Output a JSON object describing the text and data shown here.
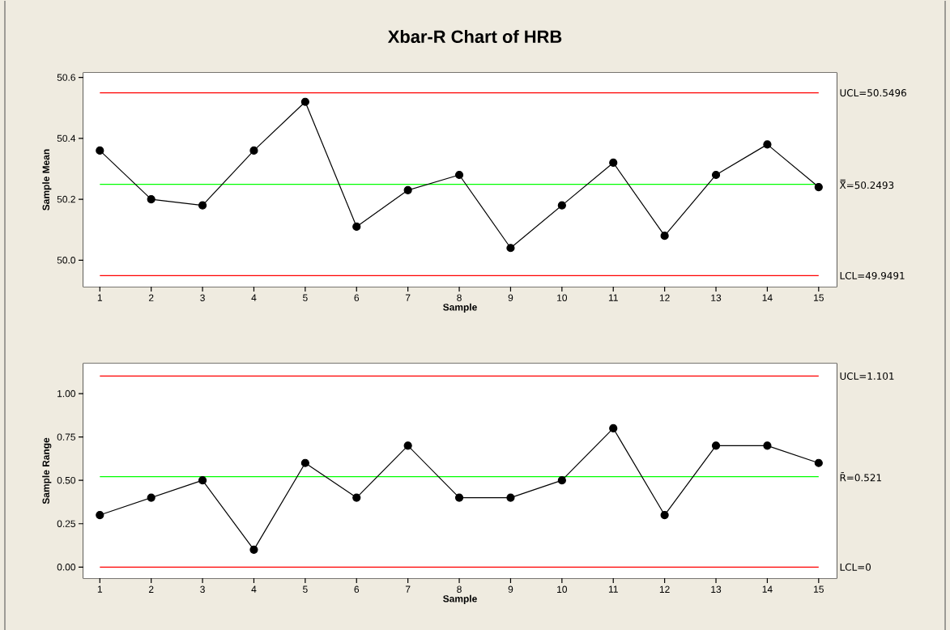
{
  "chart_data": [
    {
      "type": "line",
      "title": "Xbar-R Chart of HRB",
      "xlabel": "Sample",
      "ylabel": "Sample Mean",
      "color": "#000000",
      "marker": "circle",
      "x": [
        1,
        2,
        3,
        4,
        5,
        6,
        7,
        8,
        9,
        10,
        11,
        12,
        13,
        14,
        15
      ],
      "values": [
        50.36,
        50.2,
        50.18,
        50.36,
        50.52,
        50.11,
        50.23,
        50.28,
        50.04,
        50.18,
        50.32,
        50.08,
        50.28,
        50.38,
        50.24
      ],
      "xlim": [
        0.68,
        15.35
      ],
      "ylim": [
        49.913,
        50.615
      ],
      "xticks": [
        1,
        2,
        3,
        4,
        5,
        6,
        7,
        8,
        9,
        10,
        11,
        12,
        13,
        14,
        15
      ],
      "yticks": [
        {
          "value": 50.0,
          "label": "50.0"
        },
        50.2,
        50.4,
        50.6
      ],
      "ref_lines": [
        {
          "axis": "y",
          "value": 50.5496,
          "label": "UCL=50.5496",
          "color": "#ff0000"
        },
        {
          "axis": "y",
          "value": 50.2493,
          "label": "X̿=50.2493",
          "color": "#00ff00"
        },
        {
          "axis": "y",
          "value": 49.9491,
          "label": "LCL=49.9491",
          "color": "#ff0000"
        }
      ]
    },
    {
      "type": "line",
      "xlabel": "Sample",
      "ylabel": "Sample Range",
      "color": "#000000",
      "marker": "circle",
      "x": [
        1,
        2,
        3,
        4,
        5,
        6,
        7,
        8,
        9,
        10,
        11,
        12,
        13,
        14,
        15
      ],
      "values": [
        0.3,
        0.4,
        0.5,
        0.1,
        0.6,
        0.4,
        0.7,
        0.4,
        0.4,
        0.5,
        0.8,
        0.3,
        0.7,
        0.7,
        0.6
      ],
      "xlim": [
        0.68,
        15.35
      ],
      "ylim": [
        -0.064,
        1.173
      ],
      "xticks": [
        1,
        2,
        3,
        4,
        5,
        6,
        7,
        8,
        9,
        10,
        11,
        12,
        13,
        14,
        15
      ],
      "yticks": [
        {
          "value": 0,
          "label": "0.00"
        },
        {
          "value": 0.25,
          "label": "0.25"
        },
        {
          "value": 0.5,
          "label": "0.50"
        },
        {
          "value": 0.75,
          "label": "0.75"
        },
        {
          "value": 1,
          "label": "1.00"
        }
      ],
      "ref_lines": [
        {
          "axis": "y",
          "value": 1.101,
          "label": "UCL=1.101",
          "color": "#ff0000"
        },
        {
          "axis": "y",
          "value": 0.521,
          "label": "R̄=0.521",
          "color": "#00ff00"
        },
        {
          "axis": "y",
          "value": 0,
          "label": "LCL=0",
          "color": "#ff0000"
        }
      ]
    }
  ]
}
